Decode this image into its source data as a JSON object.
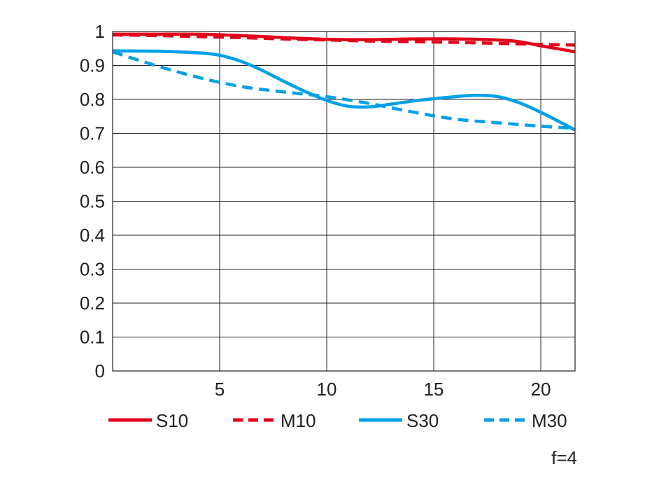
{
  "chart_data": {
    "type": "line",
    "title": "",
    "xlabel": "",
    "ylabel": "",
    "xlim": [
      0,
      21.6
    ],
    "ylim": [
      0,
      1
    ],
    "x_ticks": [
      5,
      10,
      15,
      20
    ],
    "y_ticks": [
      0,
      0.1,
      0.2,
      0.3,
      0.4,
      0.5,
      0.6,
      0.7,
      0.8,
      0.9,
      1
    ],
    "x_tick_labels": [
      "5",
      "10",
      "15",
      "20"
    ],
    "y_tick_labels": [
      "0",
      "0.1",
      "0.2",
      "0.3",
      "0.4",
      "0.5",
      "0.6",
      "0.7",
      "0.8",
      "0.9",
      "1"
    ],
    "grid": true,
    "legend_position": "bottom",
    "note": "f=4",
    "series": [
      {
        "name": "S10",
        "color": "#e2001a",
        "style": "solid",
        "x": [
          0,
          2,
          4,
          6,
          8,
          10,
          12,
          14,
          16,
          18,
          19,
          20,
          21,
          21.6
        ],
        "y": [
          0.992,
          0.992,
          0.992,
          0.988,
          0.982,
          0.977,
          0.976,
          0.978,
          0.978,
          0.975,
          0.97,
          0.958,
          0.947,
          0.94
        ]
      },
      {
        "name": "M10",
        "color": "#e2001a",
        "style": "dashed",
        "x": [
          0,
          2,
          4,
          6,
          8,
          10,
          12,
          14,
          16,
          18,
          20,
          21.6
        ],
        "y": [
          0.99,
          0.988,
          0.985,
          0.982,
          0.978,
          0.975,
          0.972,
          0.97,
          0.968,
          0.965,
          0.962,
          0.96
        ]
      },
      {
        "name": "S30",
        "color": "#00a0e9",
        "style": "solid",
        "x": [
          0,
          2,
          4,
          5,
          6,
          7,
          8,
          9,
          10,
          11,
          12,
          13,
          14,
          15,
          16,
          17,
          18,
          19,
          20,
          21,
          21.6
        ],
        "y": [
          0.943,
          0.942,
          0.937,
          0.93,
          0.912,
          0.885,
          0.853,
          0.823,
          0.797,
          0.78,
          0.778,
          0.786,
          0.795,
          0.802,
          0.808,
          0.812,
          0.808,
          0.79,
          0.762,
          0.73,
          0.71
        ]
      },
      {
        "name": "M30",
        "color": "#00a0e9",
        "style": "dashed",
        "x": [
          0,
          2,
          4,
          6,
          8,
          10,
          12,
          14,
          16,
          18,
          20,
          21.6
        ],
        "y": [
          0.94,
          0.9,
          0.865,
          0.838,
          0.822,
          0.808,
          0.788,
          0.763,
          0.742,
          0.731,
          0.721,
          0.715
        ]
      }
    ]
  }
}
